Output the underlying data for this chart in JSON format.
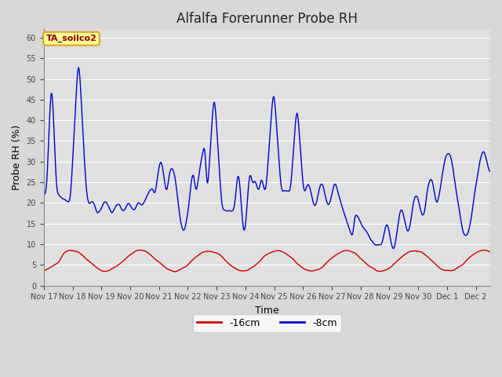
{
  "title": "Alfalfa Forerunner Probe RH",
  "ylabel": "Probe RH (%)",
  "xlabel": "Time",
  "annotation_text": "TA_soilco2",
  "annotation_color": "#8B0000",
  "annotation_bg": "#FFFF99",
  "annotation_border": "#DAA520",
  "line_16cm_color": "#CC0000",
  "line_8cm_color": "#0000CC",
  "legend_16cm": "-16cm",
  "legend_8cm": "-8cm",
  "ylim": [
    0,
    62
  ],
  "fig_bg": "#D8D8D8",
  "plot_bg": "#E0E0E0",
  "title_fontsize": 12,
  "axis_fontsize": 9,
  "tick_labels": [
    "Nov 17",
    "Nov 18",
    "Nov 19",
    "Nov 20",
    "Nov 21",
    "Nov 22",
    "Nov 23",
    "Nov 24",
    "Nov 25",
    "Nov 26",
    "Nov 27",
    "Nov 28",
    "Nov 29",
    "Nov 30",
    "Dec 1",
    "Dec 2"
  ]
}
